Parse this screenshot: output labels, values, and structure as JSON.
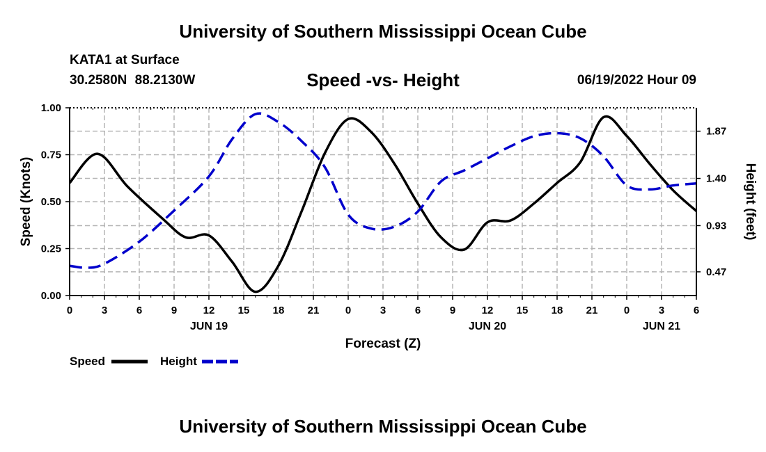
{
  "header": {
    "title": "University of Southern Mississippi Ocean Cube",
    "station": "KATA1 at Surface",
    "coords": "30.2580N 88.2130W",
    "datetime": "06/19/2022 Hour 09"
  },
  "footer": {
    "title": "University of Southern Mississippi Ocean Cube"
  },
  "chart_data": {
    "type": "line",
    "title": "Speed -vs- Height",
    "xlabel": "Forecast (Z)",
    "ylabel": "Speed (Knots)",
    "y2label": "Height (feet)",
    "x_hours_range": [
      0,
      54
    ],
    "x_tick_labels": [
      "0",
      "3",
      "6",
      "9",
      "12",
      "15",
      "18",
      "21",
      "0",
      "3",
      "6",
      "9",
      "12",
      "15",
      "18",
      "21",
      "0",
      "3",
      "6"
    ],
    "date_labels": [
      {
        "label": "JUN 19",
        "hour": 12
      },
      {
        "label": "JUN 20",
        "hour": 36
      },
      {
        "label": "JUN 21",
        "hour": 51
      }
    ],
    "ylim": [
      0,
      1
    ],
    "y_tick_labels": [
      "0.00",
      "0.25",
      "0.50",
      "0.75",
      "1.00"
    ],
    "y_ticks": [
      0,
      0.25,
      0.5,
      0.75,
      1.0
    ],
    "y2lim": [
      0.234,
      2.103
    ],
    "y2_ticks": [
      0.47,
      0.93,
      1.4,
      1.87
    ],
    "y2_tick_labels": [
      "0.47",
      "0.93",
      "1.40",
      "1.87"
    ],
    "grid": true,
    "legend": "bottom-left",
    "series": [
      {
        "name": "Speed",
        "axis": "left",
        "color": "#000000",
        "style": "solid",
        "x": [
          0,
          2.4,
          5,
          8,
          10,
          12,
          14,
          16,
          18,
          20,
          22,
          24,
          26,
          28,
          30,
          32,
          34,
          36,
          38,
          40,
          42,
          44,
          46,
          48,
          50,
          52,
          54
        ],
        "values": [
          0.6,
          0.755,
          0.58,
          0.41,
          0.31,
          0.32,
          0.18,
          0.02,
          0.16,
          0.45,
          0.76,
          0.94,
          0.87,
          0.7,
          0.49,
          0.31,
          0.245,
          0.39,
          0.4,
          0.49,
          0.6,
          0.71,
          0.95,
          0.85,
          0.7,
          0.56,
          0.45
        ]
      },
      {
        "name": "Height",
        "axis": "right",
        "color": "#0000cc",
        "style": "dashed",
        "x": [
          0,
          1.5,
          3,
          6,
          9,
          12,
          14,
          16,
          18,
          20,
          22,
          24,
          26,
          28,
          30,
          32,
          34,
          36,
          38,
          40,
          42,
          44,
          46,
          48,
          50,
          52,
          54
        ],
        "values": [
          0.53,
          0.51,
          0.55,
          0.77,
          1.08,
          1.42,
          1.79,
          2.04,
          1.96,
          1.77,
          1.51,
          1.04,
          0.9,
          0.92,
          1.07,
          1.37,
          1.48,
          1.6,
          1.72,
          1.82,
          1.85,
          1.8,
          1.62,
          1.33,
          1.29,
          1.33,
          1.35
        ]
      }
    ]
  }
}
